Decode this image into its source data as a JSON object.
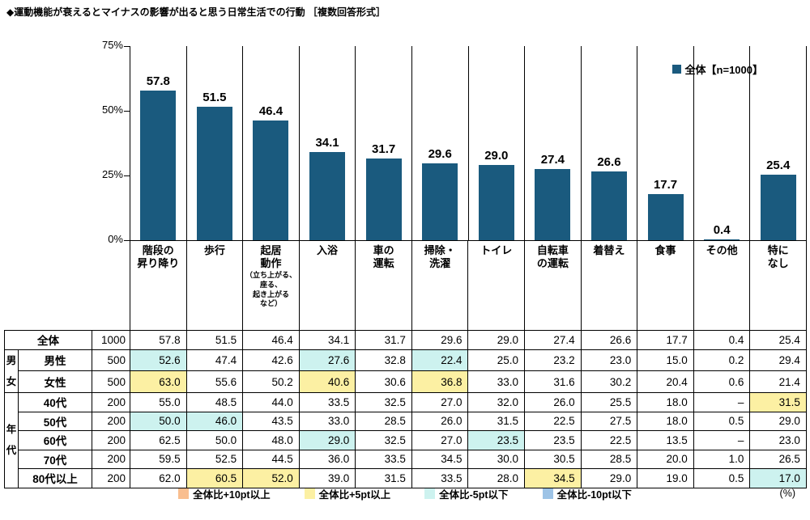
{
  "title": "◆運動機能が衰えるとマイナスの影響が出ると思う日常生活での行動 ［複数回答形式］",
  "chart_legend": "全体【n=1000】",
  "unit_label": "(%)",
  "colors": {
    "bar": "#1A5A7E",
    "plus10": "#F9BE8F",
    "plus5": "#FCF0A3",
    "minus5": "#CDF2EF",
    "minus10": "#9DC3E6"
  },
  "chart_data": {
    "type": "bar",
    "title": "運動機能が衰えるとマイナスの影響が出ると思う日常生活での行動（複数回答形式）",
    "legend": "全体【n=1000】",
    "legend_position": "top-right",
    "grid": false,
    "ylim": [
      0,
      75
    ],
    "yticks": [
      "75%",
      "50%",
      "25%",
      "0%"
    ],
    "categories": [
      {
        "label": "階段の\n昇り降り"
      },
      {
        "label": "歩行"
      },
      {
        "label": "起居\n動作",
        "note": "（立ち上がる、\n座る、\n起き上がる\nなど）"
      },
      {
        "label": "入浴"
      },
      {
        "label": "車の\n運転"
      },
      {
        "label": "掃除・\n洗濯"
      },
      {
        "label": "トイレ"
      },
      {
        "label": "自転車\nの運転"
      },
      {
        "label": "着替え"
      },
      {
        "label": "食事"
      },
      {
        "label": "その他"
      },
      {
        "label": "特に\nなし"
      }
    ],
    "values": [
      57.8,
      51.5,
      46.4,
      34.1,
      31.7,
      29.6,
      29.0,
      27.4,
      26.6,
      17.7,
      0.4,
      25.4
    ]
  },
  "table": {
    "rows": [
      {
        "label": "全体",
        "label_colspan": 2,
        "n": "1000",
        "values": [
          "57.8",
          "51.5",
          "46.4",
          "34.1",
          "31.7",
          "29.6",
          "29.0",
          "27.4",
          "26.6",
          "17.7",
          "0.4",
          "25.4"
        ],
        "hl": {}
      },
      {
        "group": {
          "label": "男女",
          "span": 2
        },
        "label": "男性",
        "n": "500",
        "values": [
          "52.6",
          "47.4",
          "42.6",
          "27.6",
          "32.8",
          "22.4",
          "25.0",
          "23.2",
          "23.0",
          "15.0",
          "0.2",
          "29.4"
        ],
        "hl": {
          "0": "c",
          "3": "c",
          "5": "c"
        }
      },
      {
        "label": "女性",
        "n": "500",
        "values": [
          "63.0",
          "55.6",
          "50.2",
          "40.6",
          "30.6",
          "36.8",
          "33.0",
          "31.6",
          "30.2",
          "20.4",
          "0.6",
          "21.4"
        ],
        "hl": {
          "0": "y",
          "3": "y",
          "5": "y"
        }
      },
      {
        "group": {
          "label": "年代",
          "span": 5
        },
        "label": "40代",
        "n": "200",
        "values": [
          "55.0",
          "48.5",
          "44.0",
          "33.5",
          "32.5",
          "27.0",
          "32.0",
          "26.0",
          "25.5",
          "18.0",
          "–",
          "31.5"
        ],
        "hl": {
          "11": "y"
        }
      },
      {
        "label": "50代",
        "n": "200",
        "values": [
          "50.0",
          "46.0",
          "43.5",
          "33.0",
          "28.5",
          "26.0",
          "31.5",
          "22.5",
          "27.5",
          "18.0",
          "0.5",
          "29.0"
        ],
        "hl": {
          "0": "c",
          "1": "c"
        }
      },
      {
        "label": "60代",
        "n": "200",
        "values": [
          "62.5",
          "50.0",
          "48.0",
          "29.0",
          "32.5",
          "27.0",
          "23.5",
          "23.5",
          "22.5",
          "13.5",
          "–",
          "23.0"
        ],
        "hl": {
          "3": "c",
          "6": "c"
        }
      },
      {
        "label": "70代",
        "n": "200",
        "values": [
          "59.5",
          "52.5",
          "44.5",
          "36.0",
          "33.5",
          "34.5",
          "30.0",
          "30.5",
          "28.5",
          "20.0",
          "1.0",
          "26.5"
        ],
        "hl": {}
      },
      {
        "label": "80代以上",
        "n": "200",
        "values": [
          "62.0",
          "60.5",
          "52.0",
          "39.0",
          "31.5",
          "33.5",
          "28.0",
          "34.5",
          "29.0",
          "19.0",
          "0.5",
          "17.0"
        ],
        "hl": {
          "1": "y",
          "2": "y",
          "7": "y",
          "11": "c"
        }
      }
    ]
  },
  "footer": {
    "items": [
      {
        "color_key": "plus10",
        "label": "全体比+10pt以上"
      },
      {
        "color_key": "plus5",
        "label": "全体比+5pt以上"
      },
      {
        "color_key": "minus5",
        "label": "全体比-5pt以下"
      },
      {
        "color_key": "minus10",
        "label": "全体比-10pt以下"
      }
    ]
  }
}
